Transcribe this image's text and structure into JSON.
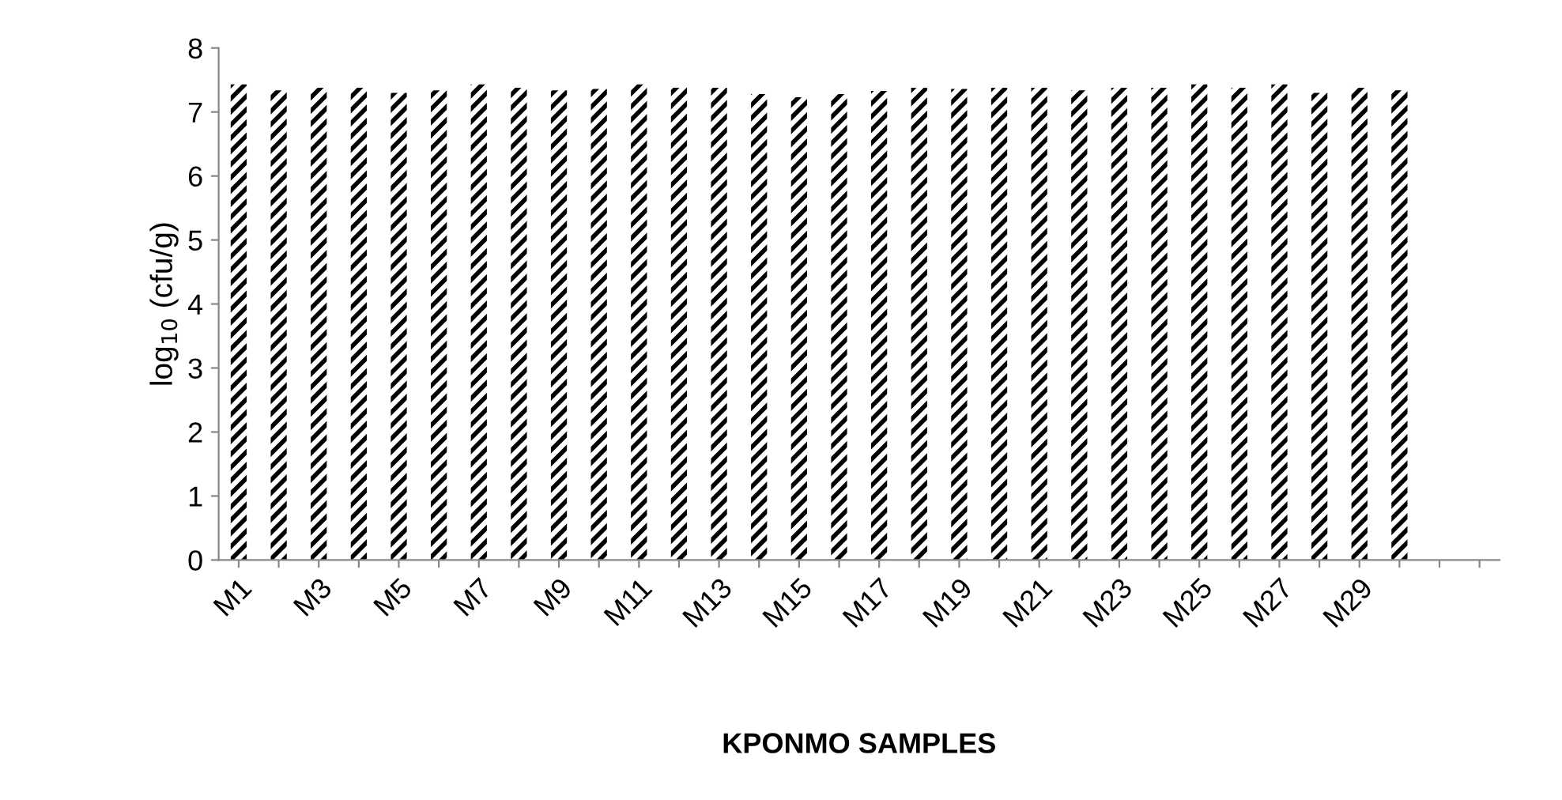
{
  "chart_data": {
    "type": "bar",
    "xlabel": "KPONMO SAMPLES",
    "ylabel": "log$_{10}$ (cfu/g)",
    "categories": [
      "M1",
      null,
      "M3",
      null,
      "M5",
      null,
      "M7",
      null,
      "M9",
      null,
      "M11",
      null,
      "M13",
      null,
      "M15",
      null,
      "M17",
      null,
      "M19",
      null,
      "M21",
      null,
      "M23",
      null,
      "M25",
      null,
      "M27",
      null,
      "M29",
      null,
      null,
      null
    ],
    "values": [
      7.43,
      7.34,
      7.38,
      7.38,
      7.3,
      7.34,
      7.43,
      7.38,
      7.34,
      7.36,
      7.43,
      7.38,
      7.38,
      7.28,
      7.23,
      7.28,
      7.33,
      7.38,
      7.36,
      7.38,
      7.38,
      7.34,
      7.38,
      7.38,
      7.43,
      7.38,
      7.43,
      7.3,
      7.38,
      7.34,
      null,
      null
    ],
    "color": "#000000",
    "ylim": [
      0,
      8
    ],
    "yticks": [
      0,
      1,
      2,
      3,
      4,
      5,
      6,
      7,
      8
    ],
    "grid": false,
    "legend": false
  }
}
